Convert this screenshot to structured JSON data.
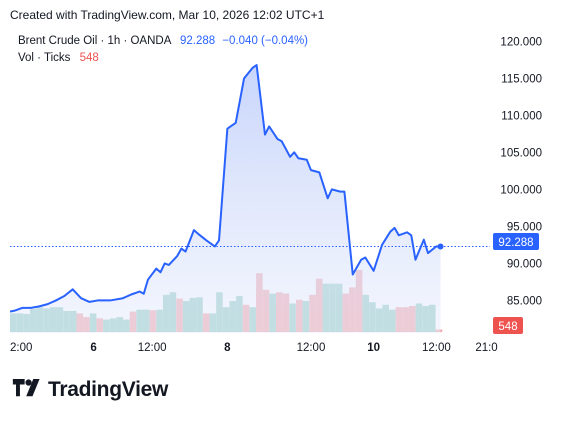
{
  "header": {
    "text": "Created with TradingView.com, Mar 10, 2026 12:02 UTC+1"
  },
  "legend": {
    "symbol": "Brent Crude Oil · 1h · OANDA",
    "last_value": "92.288",
    "change": "−0.040 (−0.04%)",
    "volume_label": "Vol · Ticks",
    "volume_value": "548"
  },
  "price_badge": "92.288",
  "volume_badge": "548",
  "brand": {
    "name": "TradingView"
  },
  "colors": {
    "line": "#2962ff",
    "area_top": "#c9d6fb",
    "vol_up": "#8fcbc0",
    "vol_down": "#f1a1a5",
    "vol_badge": "#ef5350",
    "axis_text": "#131722"
  },
  "chart_data": {
    "type": "area",
    "y_ticks": [
      "120.000",
      "115.000",
      "110.000",
      "105.000",
      "100.000",
      "95.000",
      "90.000",
      "85.000"
    ],
    "y_tick_values": [
      120,
      115,
      110,
      105,
      100,
      95,
      90,
      85
    ],
    "ylim": [
      80.6,
      121.8
    ],
    "x_ticks": [
      {
        "label": "2:00",
        "i": 0
      },
      {
        "label": "6",
        "i": 20
      },
      {
        "label": "12:00",
        "i": 34
      },
      {
        "label": "8",
        "i": 52
      },
      {
        "label": "12:00",
        "i": 72
      },
      {
        "label": "10",
        "i": 87
      },
      {
        "label": "12:00",
        "i": 102
      },
      {
        "label": "21:0",
        "i": 114
      }
    ],
    "x_count": 117,
    "price": [
      [
        0,
        83.5
      ],
      [
        1,
        83.6
      ],
      [
        3,
        84.0
      ],
      [
        5,
        84.0
      ],
      [
        7,
        84.2
      ],
      [
        9,
        84.5
      ],
      [
        11,
        85.0
      ],
      [
        13,
        85.6
      ],
      [
        15,
        86.5
      ],
      [
        17,
        85.3
      ],
      [
        19,
        84.8
      ],
      [
        21,
        85.0
      ],
      [
        24,
        85.0
      ],
      [
        27,
        85.3
      ],
      [
        29,
        85.8
      ],
      [
        31,
        86.2
      ],
      [
        32,
        85.9
      ],
      [
        33,
        87.8
      ],
      [
        35,
        89.3
      ],
      [
        36,
        88.8
      ],
      [
        37,
        90.0
      ],
      [
        38,
        89.8
      ],
      [
        40,
        91.0
      ],
      [
        41,
        92.0
      ],
      [
        42,
        91.6
      ],
      [
        44,
        94.5
      ],
      [
        45,
        94.0
      ],
      [
        47,
        93.1
      ],
      [
        49,
        92.3
      ],
      [
        50,
        93.1
      ],
      [
        52,
        108.2
      ],
      [
        54,
        109.0
      ],
      [
        56,
        115.0
      ],
      [
        58,
        116.4
      ],
      [
        59,
        116.8
      ],
      [
        61,
        107.4
      ],
      [
        62,
        108.5
      ],
      [
        64,
        106.8
      ],
      [
        65,
        106.5
      ],
      [
        67,
        104.4
      ],
      [
        68,
        105.0
      ],
      [
        69,
        104.2
      ],
      [
        71,
        104.0
      ],
      [
        72,
        102.6
      ],
      [
        74,
        102.3
      ],
      [
        76,
        98.8
      ],
      [
        77,
        100.0
      ],
      [
        79,
        99.7
      ],
      [
        80,
        99.7
      ],
      [
        82,
        88.5
      ],
      [
        84,
        90.5
      ],
      [
        85,
        90.8
      ],
      [
        87,
        89.0
      ],
      [
        89,
        92.5
      ],
      [
        91,
        94.3
      ],
      [
        92,
        94.8
      ],
      [
        93,
        93.8
      ],
      [
        95,
        94.2
      ],
      [
        96,
        93.8
      ],
      [
        97,
        90.5
      ],
      [
        99,
        93.2
      ],
      [
        100,
        91.4
      ],
      [
        102,
        92.3
      ],
      [
        103,
        92.288
      ]
    ],
    "volume": [
      {
        "v": 0.3,
        "up": true
      },
      {
        "v": 0.3,
        "up": true
      },
      {
        "v": 0.29,
        "up": true
      },
      {
        "v": 0.37,
        "up": true
      },
      {
        "v": 0.4,
        "up": true
      },
      {
        "v": 0.38,
        "up": true
      },
      {
        "v": 0.4,
        "up": true
      },
      {
        "v": 0.4,
        "up": true
      },
      {
        "v": 0.34,
        "up": true
      },
      {
        "v": 0.34,
        "up": true
      },
      {
        "v": 0.3,
        "up": false
      },
      {
        "v": 0.24,
        "up": false
      },
      {
        "v": 0.3,
        "up": true
      },
      {
        "v": 0.22,
        "up": false
      },
      {
        "v": 0.2,
        "up": true
      },
      {
        "v": 0.22,
        "up": true
      },
      {
        "v": 0.24,
        "up": true
      },
      {
        "v": 0.2,
        "up": true
      },
      {
        "v": 0.33,
        "up": false
      },
      {
        "v": 0.36,
        "up": true
      },
      {
        "v": 0.36,
        "up": true
      },
      {
        "v": 0.35,
        "up": false
      },
      {
        "v": 0.36,
        "up": true
      },
      {
        "v": 0.6,
        "up": true
      },
      {
        "v": 0.64,
        "up": true
      },
      {
        "v": 0.54,
        "up": false
      },
      {
        "v": 0.5,
        "up": true
      },
      {
        "v": 0.55,
        "up": true
      },
      {
        "v": 0.56,
        "up": true
      },
      {
        "v": 0.3,
        "up": false
      },
      {
        "v": 0.3,
        "up": true
      },
      {
        "v": 0.64,
        "up": true
      },
      {
        "v": 0.4,
        "up": true
      },
      {
        "v": 0.5,
        "up": true
      },
      {
        "v": 0.58,
        "up": true
      },
      {
        "v": 0.44,
        "up": false
      },
      {
        "v": 0.4,
        "up": true
      },
      {
        "v": 0.95,
        "up": false
      },
      {
        "v": 0.68,
        "up": false
      },
      {
        "v": 0.62,
        "up": true
      },
      {
        "v": 0.64,
        "up": false
      },
      {
        "v": 0.62,
        "up": false
      },
      {
        "v": 0.46,
        "up": true
      },
      {
        "v": 0.52,
        "up": false
      },
      {
        "v": 0.5,
        "up": true
      },
      {
        "v": 0.6,
        "up": false
      },
      {
        "v": 0.86,
        "up": false
      },
      {
        "v": 0.78,
        "up": true
      },
      {
        "v": 0.78,
        "up": true
      },
      {
        "v": 0.78,
        "up": true
      },
      {
        "v": 0.62,
        "up": false
      },
      {
        "v": 0.72,
        "up": false
      },
      {
        "v": 1.0,
        "up": false
      },
      {
        "v": 0.6,
        "up": true
      },
      {
        "v": 0.48,
        "up": true
      },
      {
        "v": 0.38,
        "up": true
      },
      {
        "v": 0.44,
        "up": true
      },
      {
        "v": 0.36,
        "up": true
      },
      {
        "v": 0.4,
        "up": false
      },
      {
        "v": 0.4,
        "up": false
      },
      {
        "v": 0.42,
        "up": false
      },
      {
        "v": 0.46,
        "up": true
      },
      {
        "v": 0.42,
        "up": true
      },
      {
        "v": 0.44,
        "up": true
      },
      {
        "v": 0.04,
        "up": false
      }
    ],
    "current": {
      "value": 92.288,
      "i": 103
    }
  }
}
